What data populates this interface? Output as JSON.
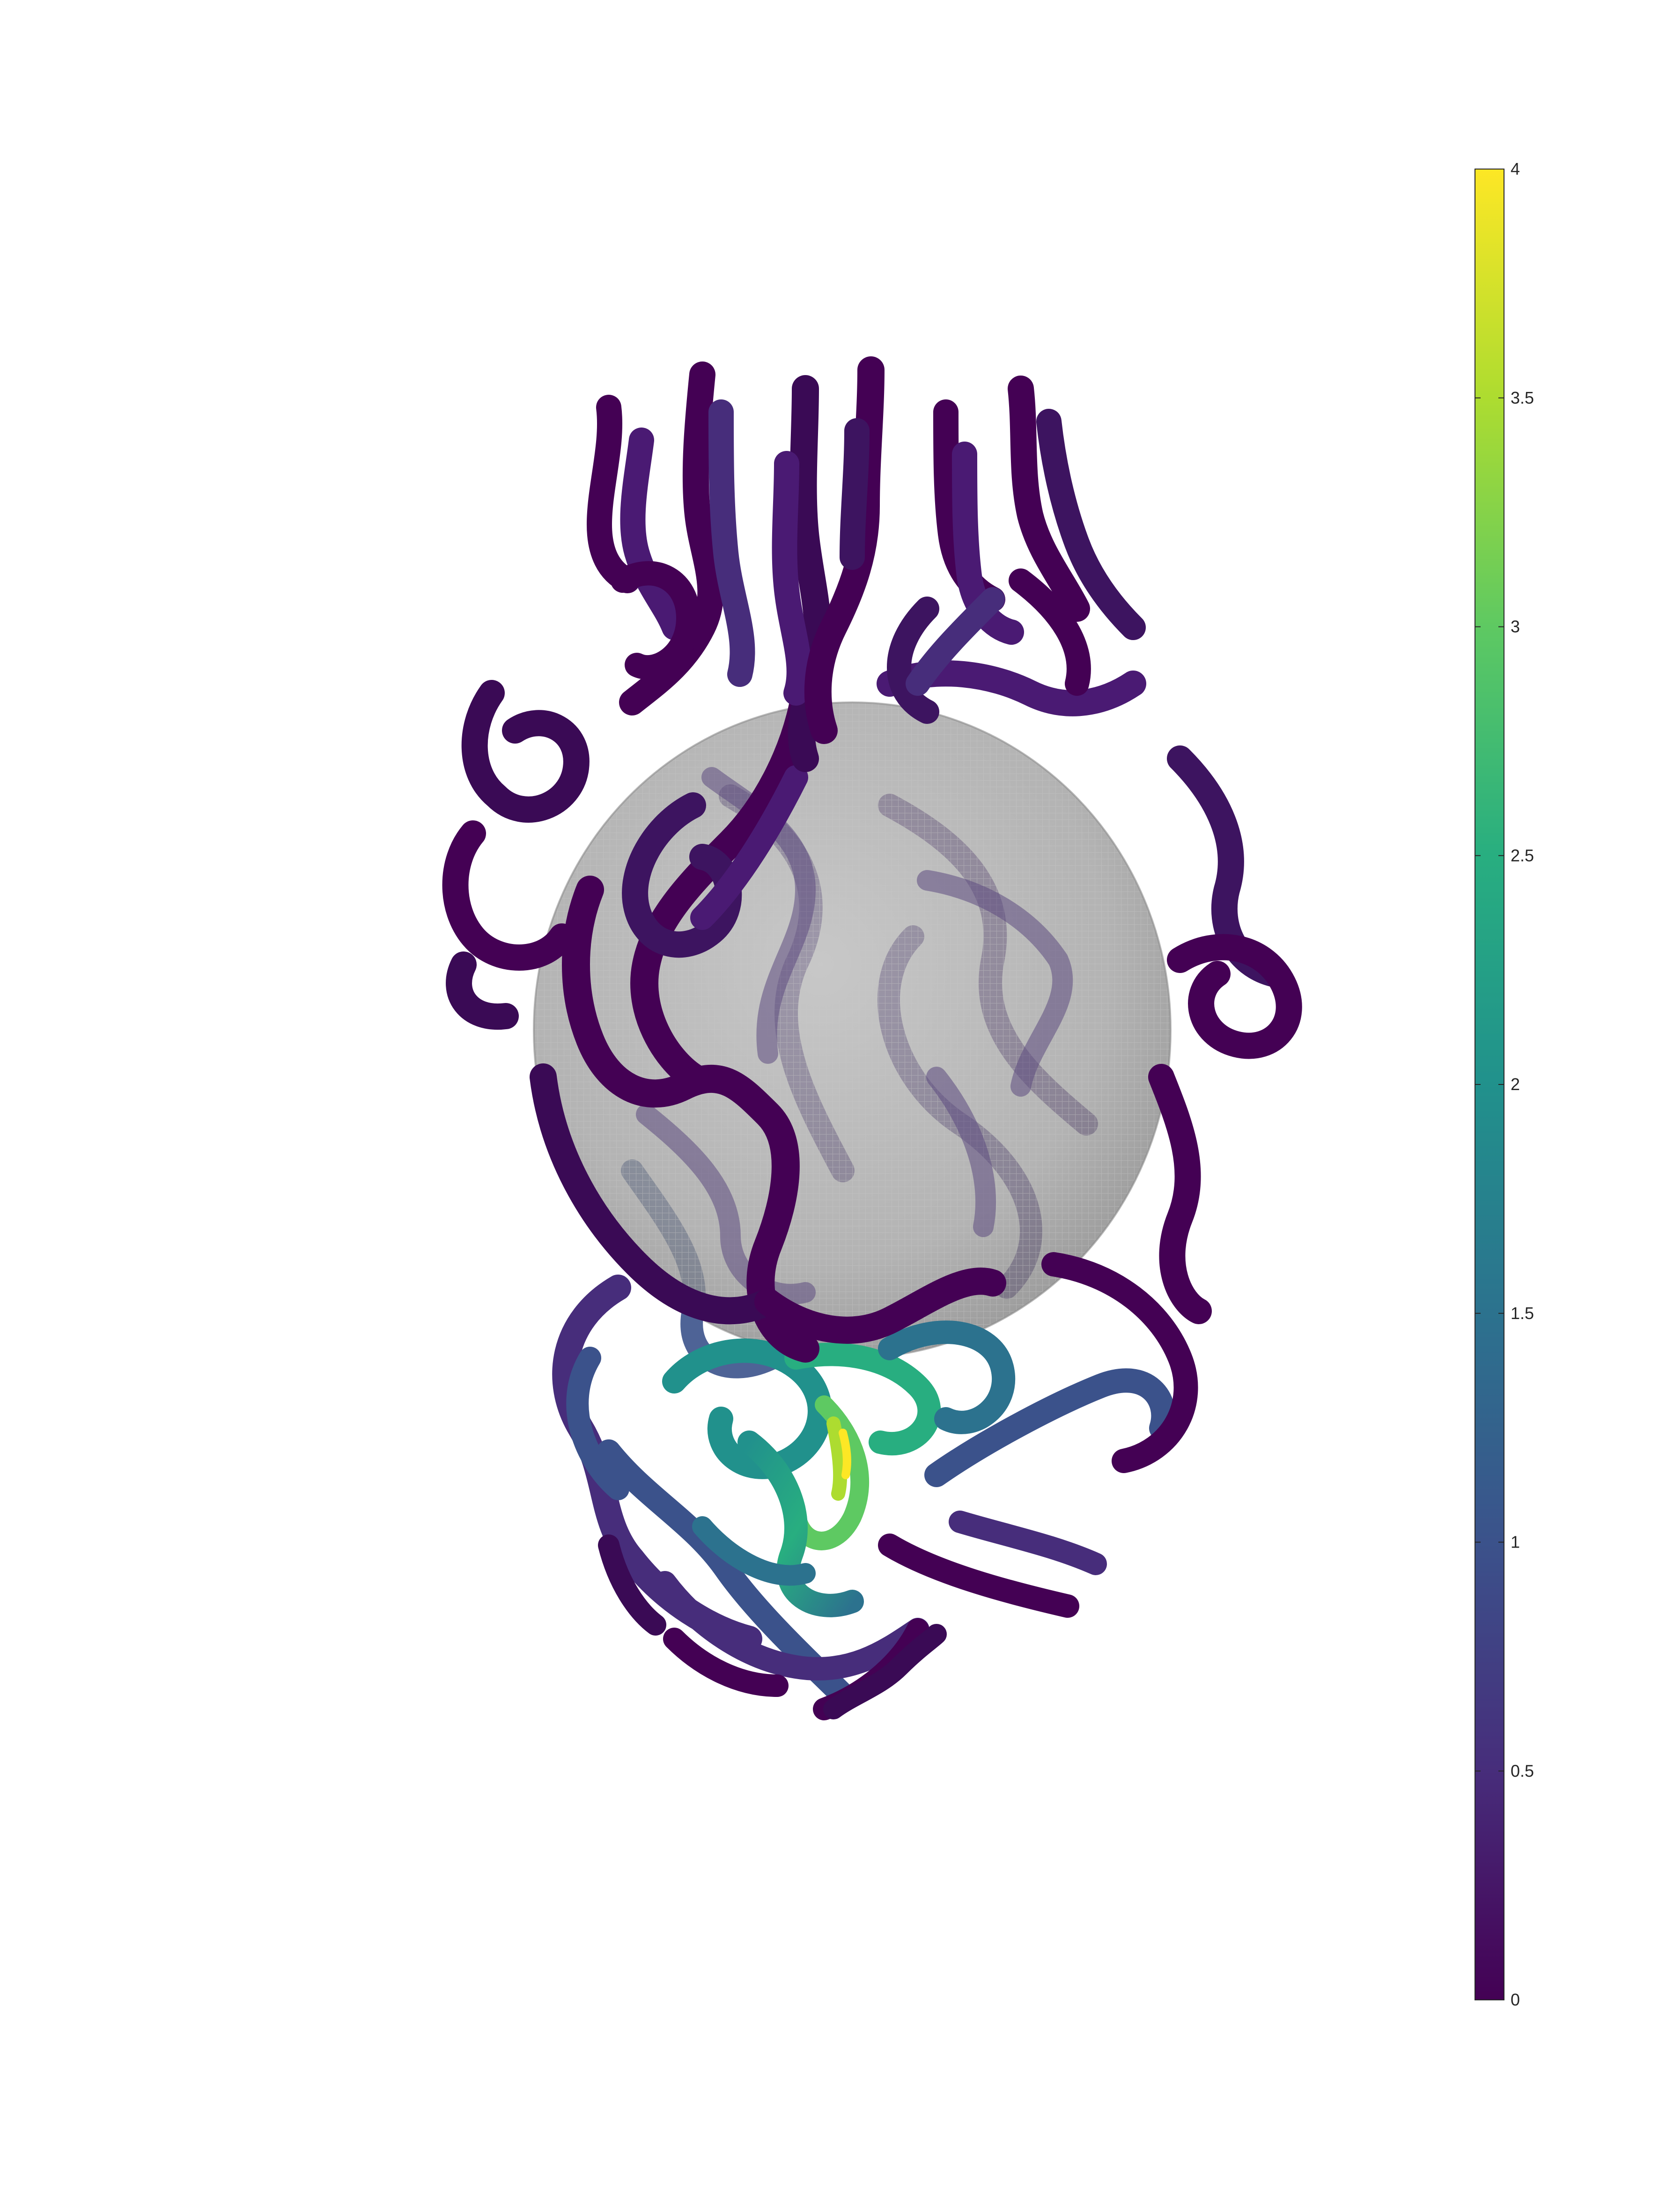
{
  "figure": {
    "background": "#ffffff",
    "sphere_color": "#9a9a9a",
    "tube_palette": [
      "#440154",
      "#472d7b",
      "#3b528b",
      "#2c728e",
      "#21918c",
      "#28ae80",
      "#5ec962",
      "#addc30",
      "#fde725"
    ]
  },
  "colorbar": {
    "colormap": "viridis",
    "min": 0,
    "max": 4,
    "ticks": [
      {
        "value": 0,
        "label": "0"
      },
      {
        "value": 0.5,
        "label": "0.5"
      },
      {
        "value": 1,
        "label": "1"
      },
      {
        "value": 1.5,
        "label": "1.5"
      },
      {
        "value": 2,
        "label": "2"
      },
      {
        "value": 2.5,
        "label": "2.5"
      },
      {
        "value": 3,
        "label": "3"
      },
      {
        "value": 3.5,
        "label": "3.5"
      },
      {
        "value": 4,
        "label": "4"
      }
    ]
  }
}
